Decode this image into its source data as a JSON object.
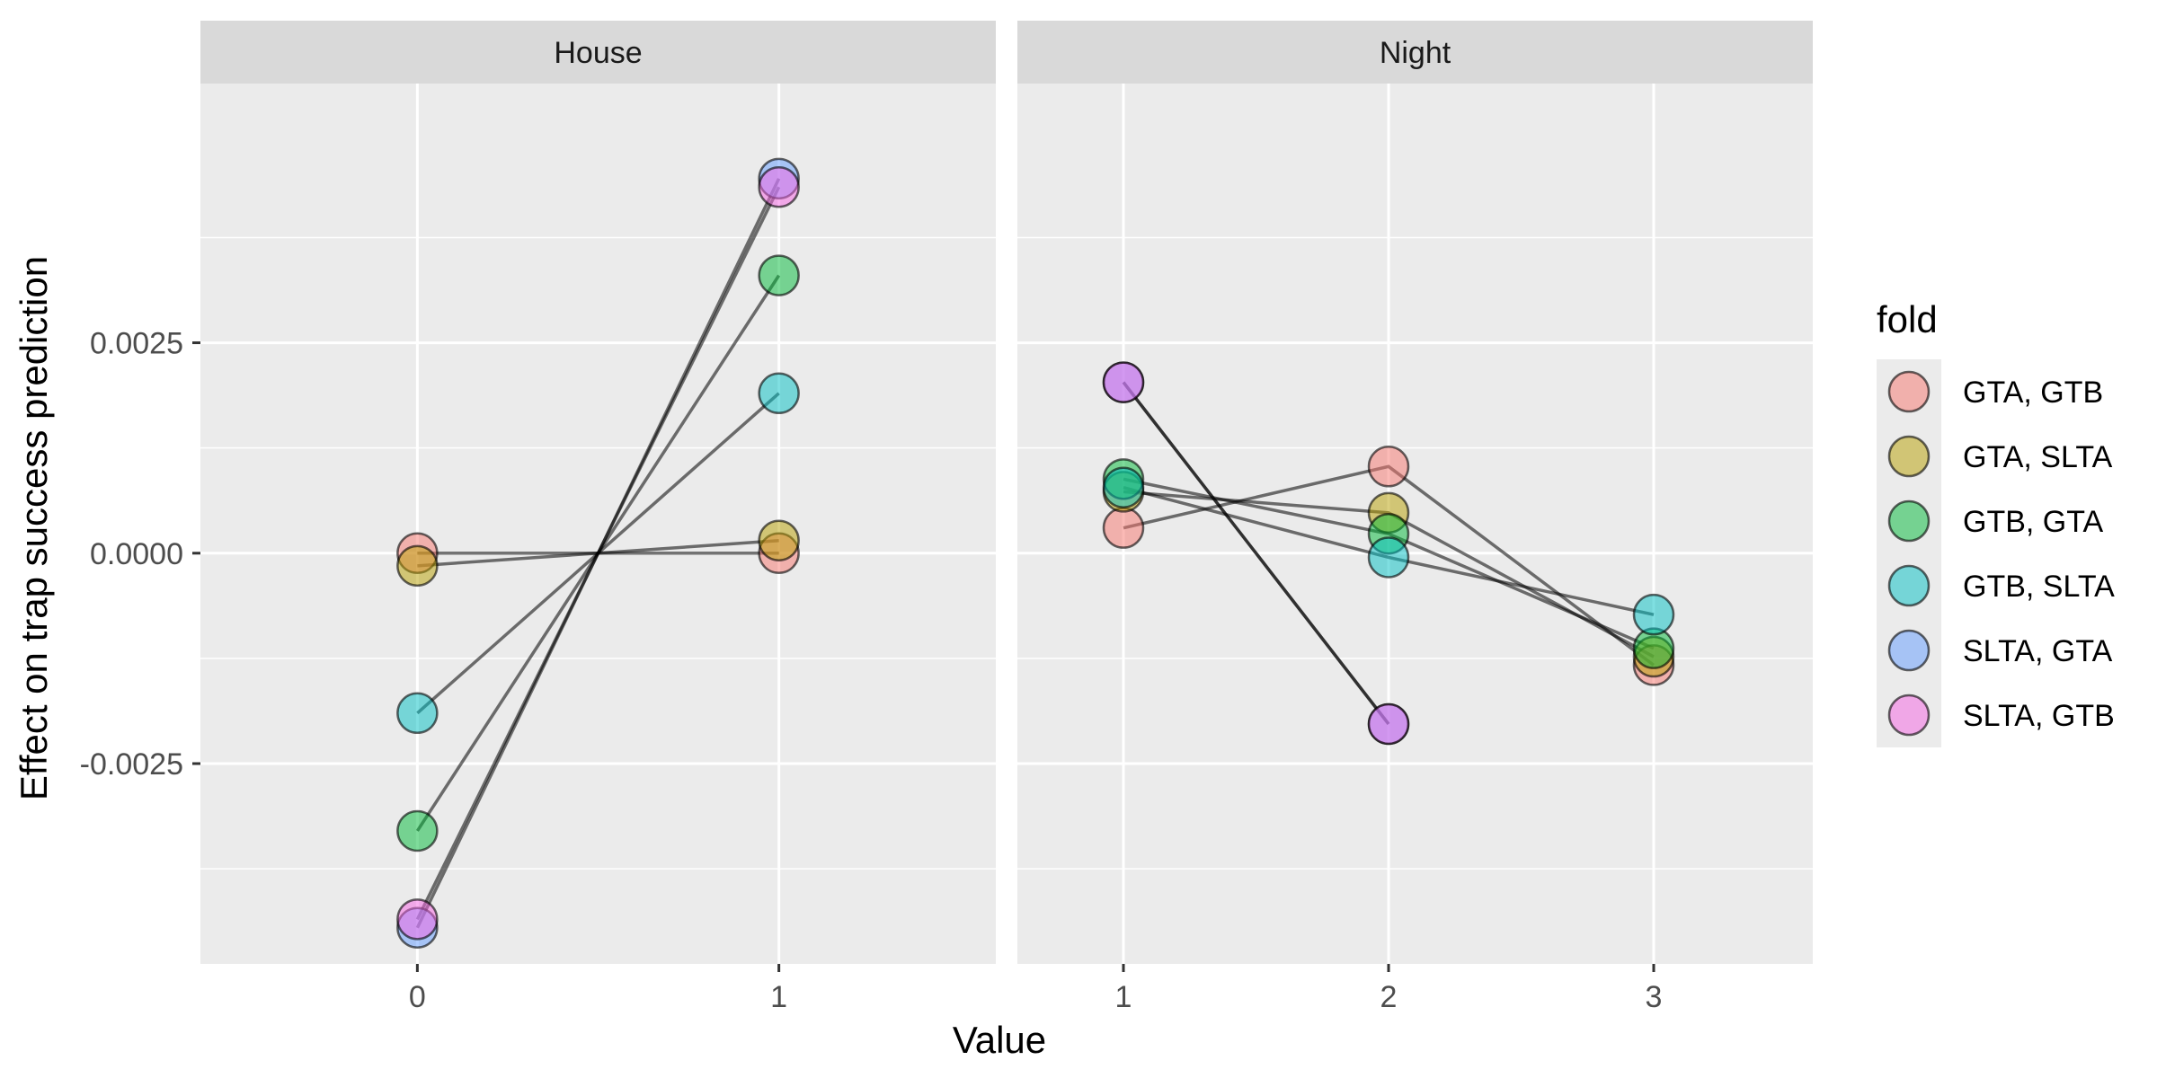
{
  "chart_data": {
    "type": "line",
    "xlabel": "Value",
    "ylabel": "Effect on trap success prediction",
    "y_ticks": [
      "0.0025",
      "0.0000",
      "-0.0025"
    ],
    "y_tick_values": [
      0.0025,
      0.0,
      -0.0025
    ],
    "ylim": [
      -0.00488,
      0.00558
    ],
    "grid": true,
    "legend": {
      "title": "fold",
      "position": "right",
      "entries": [
        {
          "name": "GTA, GTB",
          "color": "#F8766D"
        },
        {
          "name": "GTA, SLTA",
          "color": "#B79F00"
        },
        {
          "name": "GTB, GTA",
          "color": "#00BA38"
        },
        {
          "name": "GTB, SLTA",
          "color": "#00BFC4"
        },
        {
          "name": "SLTA, GTA",
          "color": "#619CFF"
        },
        {
          "name": "SLTA, GTB",
          "color": "#F564E3"
        }
      ]
    },
    "panels": [
      {
        "strip": "House",
        "x": [
          0,
          1
        ],
        "x_ticks": [
          "0",
          "1"
        ],
        "xlim": [
          -0.6,
          1.6
        ],
        "series": [
          {
            "name": "GTA, GTB",
            "values": [
              0.0,
              0.0
            ]
          },
          {
            "name": "GTA, SLTA",
            "values": [
              -0.00015,
              0.00015
            ]
          },
          {
            "name": "GTB, GTA",
            "values": [
              -0.0033,
              0.0033
            ]
          },
          {
            "name": "GTB, SLTA",
            "values": [
              -0.0019,
              0.0019
            ]
          },
          {
            "name": "SLTA, GTA",
            "values": [
              -0.00445,
              0.00445
            ]
          },
          {
            "name": "SLTA, GTB",
            "values": [
              -0.00435,
              0.00435
            ]
          }
        ]
      },
      {
        "strip": "Night",
        "x": [
          1,
          2,
          3
        ],
        "x_ticks": [
          "1",
          "2",
          "3"
        ],
        "xlim": [
          0.6,
          3.6
        ],
        "series": [
          {
            "name": "GTA, GTB",
            "values": [
              0.0003,
              0.00103,
              -0.00133
            ]
          },
          {
            "name": "GTA, SLTA",
            "values": [
              0.00073,
              0.00048,
              -0.00123
            ]
          },
          {
            "name": "GTB, GTA",
            "values": [
              0.00088,
              0.00023,
              -0.00113
            ]
          },
          {
            "name": "GTB, SLTA",
            "values": [
              0.00078,
              -5e-05,
              -0.00073
            ]
          },
          {
            "name": "SLTA, GTA",
            "values": [
              0.00203,
              -0.00203,
              null
            ]
          },
          {
            "name": "SLTA, GTB",
            "values": [
              0.00203,
              -0.00203,
              null
            ]
          }
        ]
      }
    ]
  }
}
